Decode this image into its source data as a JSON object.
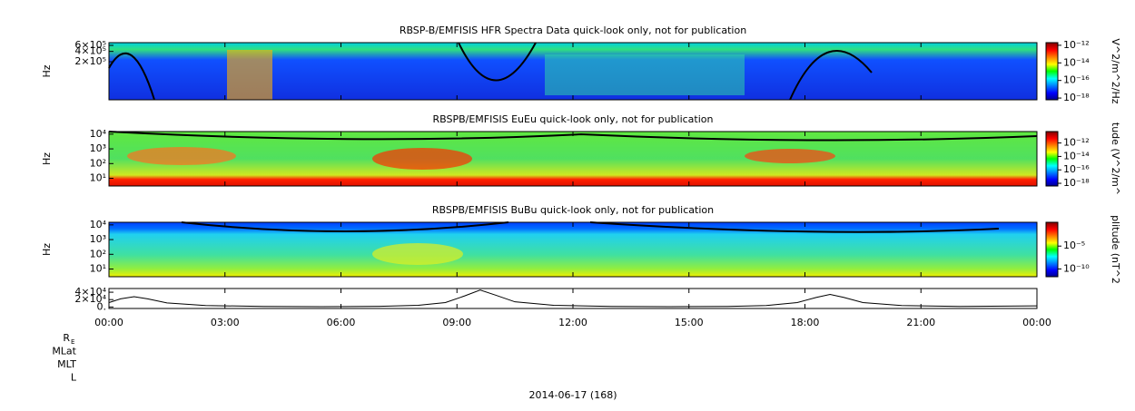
{
  "chart_data": [
    {
      "type": "spectrogram",
      "title": "RBSP-B/EMFISIS  HFR Spectra Data quick-look only, not for publication",
      "y_label": "Hz",
      "log_scale": true,
      "ylim": [
        15500,
        720000
      ],
      "yticks": [
        {
          "value": 600000,
          "label": "6×10⁵"
        },
        {
          "value": 400000,
          "label": "4×10⁵"
        },
        {
          "value": 200000,
          "label": "2×10⁵"
        }
      ],
      "colorbar": {
        "label": "V^2/m^2/Hz",
        "lim": [
          -18.2,
          -11.7
        ],
        "ticks": [
          {
            "value": -12,
            "label": "10⁻¹²"
          },
          {
            "value": -14,
            "label": "10⁻¹⁴"
          },
          {
            "value": -16,
            "label": "10⁻¹⁶"
          },
          {
            "value": -18,
            "label": "10⁻¹⁸"
          }
        ]
      }
    },
    {
      "type": "spectrogram",
      "title": "RBSPB/EMFISIS  EuEu quick-look only, not for publication",
      "y_label": "Hz",
      "log_scale": true,
      "ylim": [
        3,
        15000
      ],
      "yticks": [
        {
          "value": 10000,
          "label": "10⁴"
        },
        {
          "value": 1000,
          "label": "10³"
        },
        {
          "value": 100,
          "label": "10²"
        },
        {
          "value": 10,
          "label": "10¹"
        }
      ],
      "colorbar": {
        "label": "tude (V^2/m^",
        "lim": [
          -18.4,
          -10.3
        ],
        "ticks": [
          {
            "value": -12,
            "label": "10⁻¹²"
          },
          {
            "value": -14,
            "label": "10⁻¹⁴"
          },
          {
            "value": -16,
            "label": "10⁻¹⁶"
          },
          {
            "value": -18,
            "label": "10⁻¹⁸"
          }
        ]
      }
    },
    {
      "type": "spectrogram",
      "title": "RBSPB/EMFISIS  BuBu quick-look only, not for publication",
      "y_label": "Hz",
      "log_scale": true,
      "ylim": [
        3,
        15000
      ],
      "yticks": [
        {
          "value": 10000,
          "label": "10⁴"
        },
        {
          "value": 1000,
          "label": "10³"
        },
        {
          "value": 100,
          "label": "10²"
        },
        {
          "value": 10,
          "label": "10¹"
        }
      ],
      "colorbar": {
        "label": "plitude (nT^2",
        "lim": [
          -11.7,
          0.2
        ],
        "ticks": [
          {
            "value": -5,
            "label": "10⁻⁵"
          },
          {
            "value": -10,
            "label": "10⁻¹⁰"
          }
        ]
      }
    },
    {
      "type": "line",
      "color": "#000000",
      "ylim": [
        -4000,
        50000
      ],
      "yticks": [
        {
          "value": 40000,
          "label": "4×10⁴"
        },
        {
          "value": 20000,
          "label": "2×10⁴"
        },
        {
          "value": 0,
          "label": "0."
        }
      ],
      "xlim": [
        0,
        24
      ],
      "xticks": [
        {
          "value": 0,
          "label": "00:00"
        },
        {
          "value": 3,
          "label": "03:00"
        },
        {
          "value": 6,
          "label": "06:00"
        },
        {
          "value": 9,
          "label": "09:00"
        },
        {
          "value": 12,
          "label": "12:00"
        },
        {
          "value": 15,
          "label": "15:00"
        },
        {
          "value": 18,
          "label": "18:00"
        },
        {
          "value": 21,
          "label": "21:00"
        },
        {
          "value": 24,
          "label": "00:00"
        }
      ],
      "x": [
        0,
        0.3,
        0.65,
        1.0,
        1.5,
        2.5,
        4,
        5.5,
        7,
        8,
        8.7,
        9.2,
        9.6,
        10,
        10.5,
        11.5,
        13,
        14.5,
        16,
        17,
        17.8,
        18.3,
        18.65,
        19,
        19.5,
        20.5,
        22,
        24
      ],
      "values": [
        12000,
        22000,
        28000,
        22000,
        11000,
        4000,
        1500,
        1000,
        1800,
        4500,
        12000,
        30000,
        46000,
        32000,
        14000,
        4500,
        1500,
        1000,
        1500,
        4000,
        12000,
        26000,
        34000,
        26000,
        12000,
        4000,
        1500,
        3000
      ]
    }
  ],
  "ephemeris": [
    {
      "text": "R",
      "sub": "E"
    },
    {
      "text": "MLat"
    },
    {
      "text": "MLT"
    },
    {
      "text": "L"
    }
  ],
  "footer": "2014-06-17 (168)"
}
